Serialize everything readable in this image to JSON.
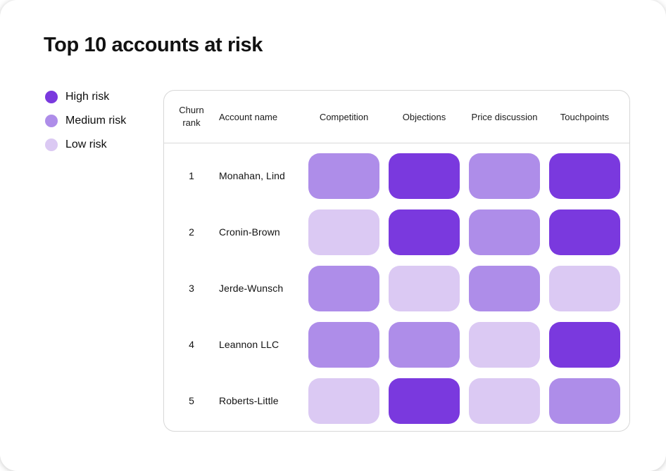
{
  "title": "Top 10 accounts at risk",
  "legend": {
    "items": [
      {
        "label": "High risk",
        "level": "high",
        "color": "#7A39DE"
      },
      {
        "label": "Medium risk",
        "level": "medium",
        "color": "#AE8DE9"
      },
      {
        "label": "Low risk",
        "level": "low",
        "color": "#DBC9F3"
      }
    ]
  },
  "table": {
    "columns": [
      "Churn rank",
      "Account name",
      "Competition",
      "Objections",
      "Price discussion",
      "Touchpoints"
    ],
    "rows": [
      {
        "rank": "1",
        "account": "Monahan, Lind",
        "risks": [
          "medium",
          "high",
          "medium",
          "high"
        ]
      },
      {
        "rank": "2",
        "account": "Cronin-Brown",
        "risks": [
          "low",
          "high",
          "medium",
          "high"
        ]
      },
      {
        "rank": "3",
        "account": "Jerde-Wunsch",
        "risks": [
          "medium",
          "low",
          "medium",
          "low"
        ]
      },
      {
        "rank": "4",
        "account": "Leannon LLC",
        "risks": [
          "medium",
          "medium",
          "low",
          "high"
        ]
      },
      {
        "rank": "5",
        "account": "Roberts-Little",
        "risks": [
          "low",
          "high",
          "low",
          "medium"
        ]
      }
    ]
  },
  "colors": {
    "high_risk": "#7A39DE",
    "medium_risk": "#AE8DE9",
    "low_risk": "#DBC9F3",
    "panel_border": "#D7D7D7",
    "title_text": "#121212"
  },
  "chart_data": {
    "type": "heatmap",
    "title": "Top 10 accounts at risk",
    "row_ranks": [
      1,
      2,
      3,
      4,
      5
    ],
    "rows": [
      "Monahan, Lind",
      "Cronin-Brown",
      "Jerde-Wunsch",
      "Leannon LLC",
      "Roberts-Little"
    ],
    "columns": [
      "Competition",
      "Objections",
      "Price discussion",
      "Touchpoints"
    ],
    "values": [
      [
        "medium",
        "high",
        "medium",
        "high"
      ],
      [
        "low",
        "high",
        "medium",
        "high"
      ],
      [
        "medium",
        "low",
        "medium",
        "low"
      ],
      [
        "medium",
        "medium",
        "low",
        "high"
      ],
      [
        "low",
        "high",
        "low",
        "medium"
      ]
    ],
    "value_scale": [
      "low",
      "medium",
      "high"
    ],
    "legend_entries": [
      "High risk",
      "Medium risk",
      "Low risk"
    ],
    "legend_position": "left",
    "grid": false
  }
}
